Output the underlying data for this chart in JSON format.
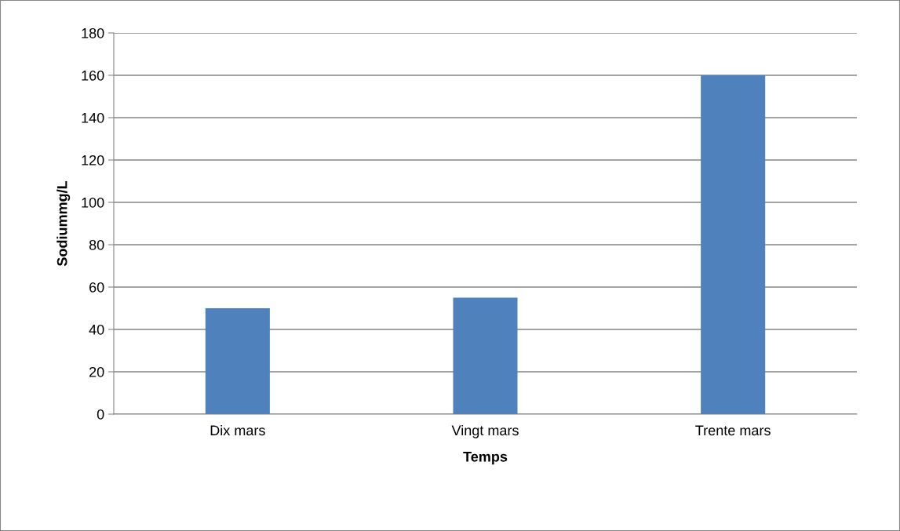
{
  "chart_data": {
    "type": "bar",
    "xlabel": "Temps",
    "ylabel": "Sodiummg/L",
    "categories": [
      "Dix mars",
      "Vingt mars",
      "Trente mars"
    ],
    "values": [
      50,
      55,
      160
    ],
    "color": "#4f81bd",
    "ylim": [
      0,
      180
    ],
    "yticks": [
      0,
      20,
      40,
      60,
      80,
      100,
      120,
      140,
      160,
      180
    ],
    "grid": "y",
    "legend": false
  }
}
